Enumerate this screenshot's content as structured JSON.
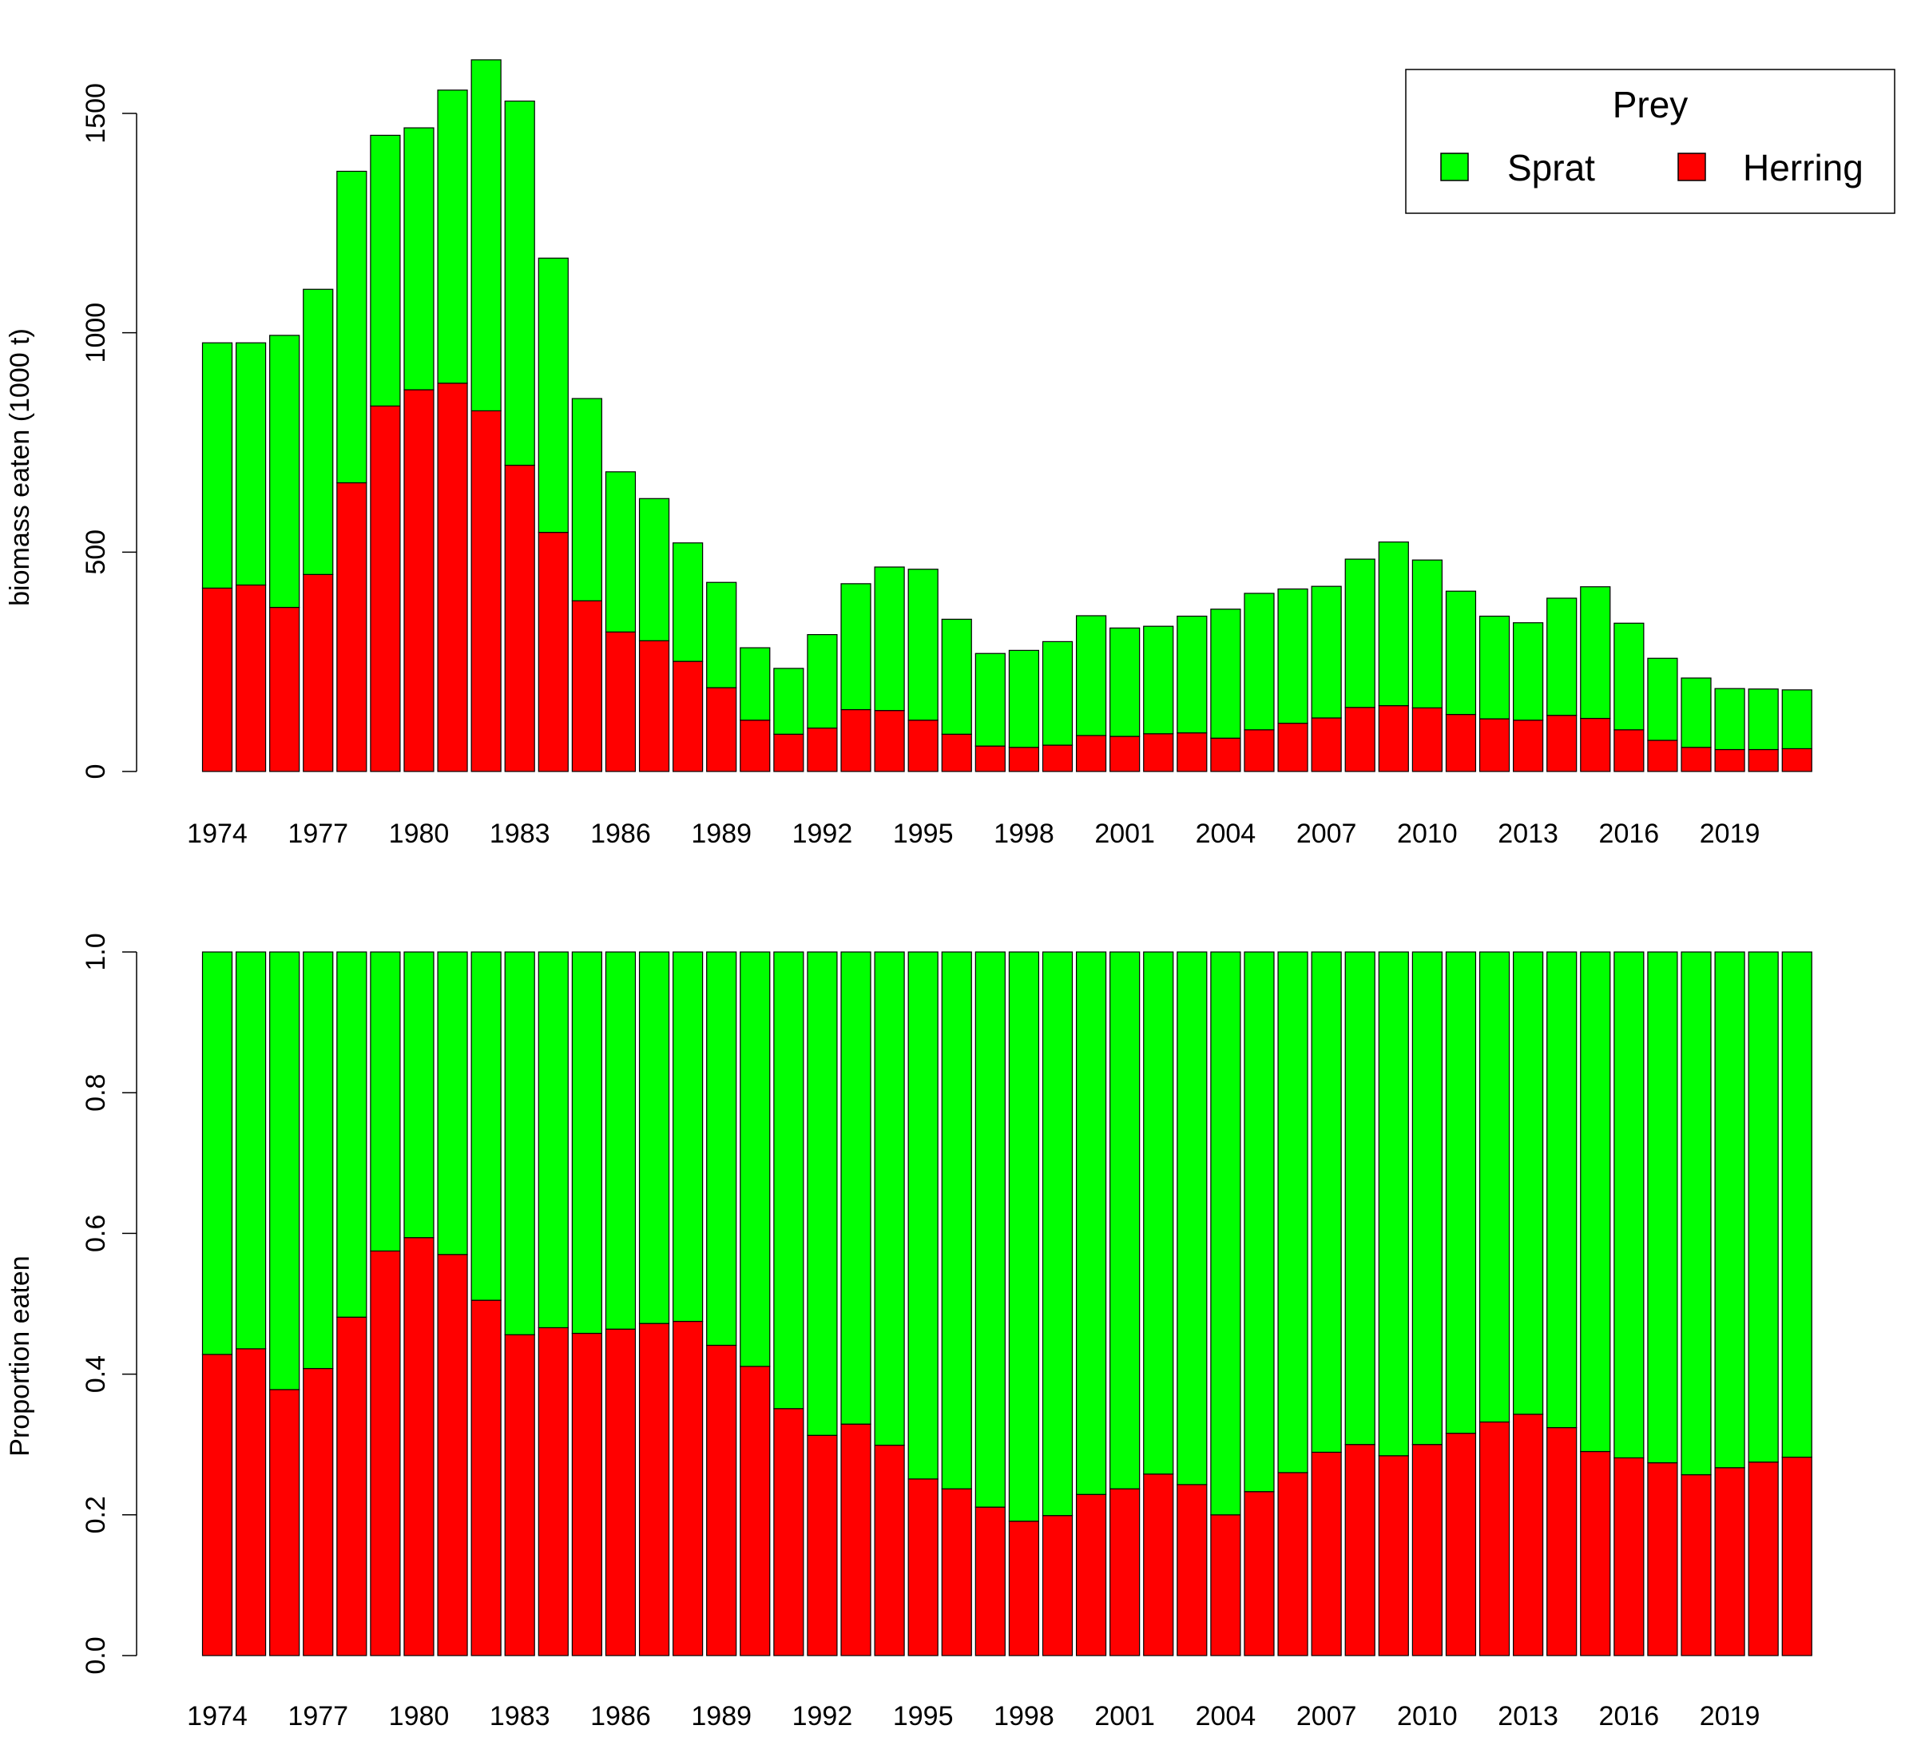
{
  "chart_data": [
    {
      "type": "bar",
      "stacked": true,
      "ylabel": "biomass eaten (1000 t)",
      "xlabel": "",
      "ylim": [
        0,
        1600
      ],
      "yticks": [
        0,
        500,
        1000,
        1500
      ],
      "categories": [
        1974,
        1975,
        1976,
        1977,
        1978,
        1979,
        1980,
        1981,
        1982,
        1983,
        1984,
        1985,
        1986,
        1987,
        1988,
        1989,
        1990,
        1991,
        1992,
        1993,
        1994,
        1995,
        1996,
        1997,
        1998,
        1999,
        2000,
        2001,
        2002,
        2003,
        2004,
        2005,
        2006,
        2007,
        2008,
        2009,
        2010,
        2011,
        2012,
        2013,
        2014,
        2015,
        2016,
        2017,
        2018,
        2019,
        2020,
        2021
      ],
      "xtick_labels": [
        "1974",
        "1977",
        "1980",
        "1983",
        "1986",
        "1989",
        "1992",
        "1995",
        "1998",
        "2001",
        "2004",
        "2007",
        "2010",
        "2013",
        "2016",
        "2019"
      ],
      "series": [
        {
          "name": "Herring",
          "color": "#ff0000",
          "values": [
            418,
            425,
            374,
            449,
            658,
            833,
            870,
            885,
            822,
            698,
            545,
            389,
            318,
            298,
            251,
            191,
            117,
            85,
            99,
            141,
            139,
            117,
            85,
            58,
            55,
            60,
            82,
            80,
            86,
            88,
            76,
            95,
            110,
            122,
            146,
            150,
            145,
            130,
            120,
            117,
            128,
            121,
            95,
            71,
            55,
            50,
            50,
            52
          ]
        },
        {
          "name": "Sprat",
          "color": "#00ff00",
          "values": [
            559,
            552,
            620,
            650,
            710,
            617,
            597,
            668,
            800,
            830,
            625,
            461,
            365,
            324,
            270,
            240,
            165,
            150,
            213,
            287,
            327,
            344,
            262,
            211,
            221,
            236,
            273,
            247,
            245,
            266,
            294,
            311,
            306,
            300,
            338,
            373,
            337,
            281,
            234,
            222,
            267,
            300,
            243,
            187,
            158,
            139,
            138,
            134
          ]
        }
      ],
      "legend": {
        "title": "Prey",
        "position": "top-right",
        "entries": [
          "Sprat",
          "Herring"
        ]
      }
    },
    {
      "type": "bar",
      "stacked": true,
      "ylabel": "Proportion eaten",
      "xlabel": "",
      "ylim": [
        0,
        1
      ],
      "yticks": [
        "0.0",
        "0.2",
        "0.4",
        "0.6",
        "0.8",
        "1.0"
      ],
      "categories": [
        1974,
        1975,
        1976,
        1977,
        1978,
        1979,
        1980,
        1981,
        1982,
        1983,
        1984,
        1985,
        1986,
        1987,
        1988,
        1989,
        1990,
        1991,
        1992,
        1993,
        1994,
        1995,
        1996,
        1997,
        1998,
        1999,
        2000,
        2001,
        2002,
        2003,
        2004,
        2005,
        2006,
        2007,
        2008,
        2009,
        2010,
        2011,
        2012,
        2013,
        2014,
        2015,
        2016,
        2017,
        2018,
        2019,
        2020,
        2021
      ],
      "xtick_labels": [
        "1974",
        "1977",
        "1980",
        "1983",
        "1986",
        "1989",
        "1992",
        "1995",
        "1998",
        "2001",
        "2004",
        "2007",
        "2010",
        "2013",
        "2016",
        "2019"
      ],
      "series": [
        {
          "name": "Herring",
          "color": "#ff0000",
          "values": [
            0.428,
            0.436,
            0.378,
            0.408,
            0.481,
            0.575,
            0.594,
            0.57,
            0.505,
            0.456,
            0.466,
            0.458,
            0.464,
            0.472,
            0.475,
            0.441,
            0.411,
            0.351,
            0.313,
            0.329,
            0.299,
            0.251,
            0.237,
            0.211,
            0.191,
            0.199,
            0.229,
            0.237,
            0.258,
            0.243,
            0.2,
            0.233,
            0.26,
            0.289,
            0.3,
            0.284,
            0.3,
            0.316,
            0.332,
            0.343,
            0.324,
            0.29,
            0.281,
            0.274,
            0.257,
            0.267,
            0.275,
            0.282
          ]
        },
        {
          "name": "Sprat",
          "color": "#00ff00",
          "values": [
            0.572,
            0.564,
            0.622,
            0.592,
            0.519,
            0.425,
            0.406,
            0.43,
            0.495,
            0.544,
            0.534,
            0.542,
            0.536,
            0.528,
            0.525,
            0.559,
            0.589,
            0.649,
            0.687,
            0.671,
            0.701,
            0.749,
            0.763,
            0.789,
            0.809,
            0.801,
            0.771,
            0.763,
            0.742,
            0.757,
            0.8,
            0.767,
            0.74,
            0.711,
            0.7,
            0.716,
            0.7,
            0.684,
            0.668,
            0.657,
            0.676,
            0.71,
            0.719,
            0.726,
            0.743,
            0.733,
            0.725,
            0.718
          ]
        }
      ]
    }
  ]
}
